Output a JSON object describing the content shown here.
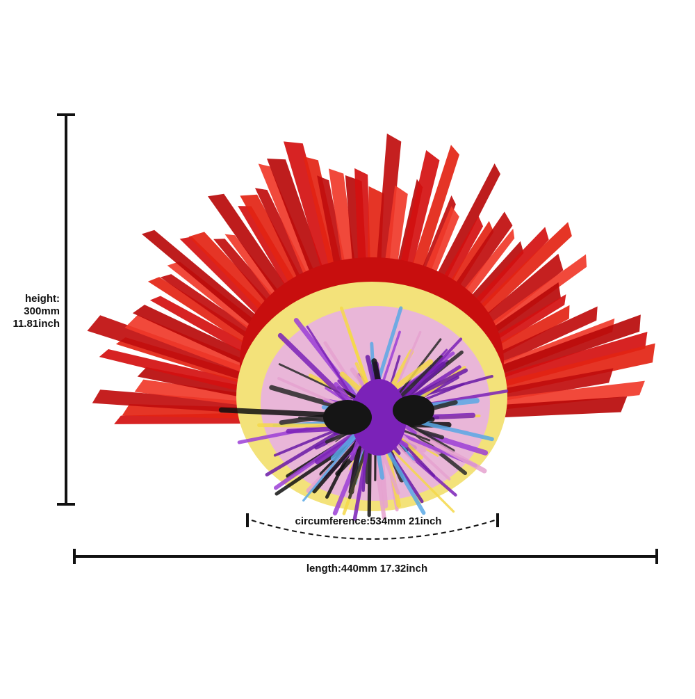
{
  "dimensions": {
    "height": [
      "height:",
      "300mm",
      "11.81inch"
    ],
    "circumference": "circumference:534mm 21inch",
    "length": "length:440mm 17.32inch"
  }
}
